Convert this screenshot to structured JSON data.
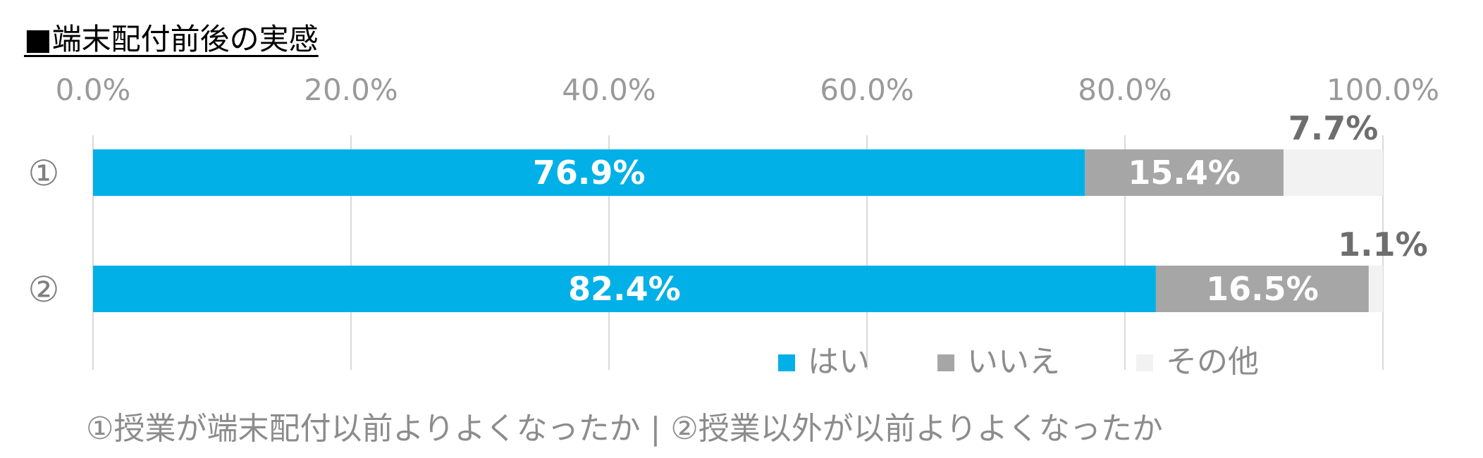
{
  "title": "■端末配付前後の実感",
  "footnote": "①授業が端末配付以前よりよくなったか | ②授業以外が以前よりよくなったか",
  "chart_data": {
    "type": "bar",
    "orientation": "horizontal",
    "stacked": true,
    "title": "■端末配付前後の実感",
    "categories": [
      "①",
      "②"
    ],
    "series": [
      {
        "name": "はい",
        "color": "#00b0e6",
        "values": [
          76.9,
          82.4
        ],
        "labels": [
          "76.9%",
          "82.4%"
        ],
        "label_color": "#ffffff"
      },
      {
        "name": "いいえ",
        "color": "#a6a6a6",
        "values": [
          15.4,
          16.5
        ],
        "labels": [
          "15.4%",
          "16.5%"
        ],
        "label_color": "#ffffff"
      },
      {
        "name": "その他",
        "color": "#f2f2f2",
        "values": [
          7.7,
          1.1
        ],
        "labels": [
          "7.7%",
          "1.1%"
        ],
        "label_color": "#6e6e6e"
      }
    ],
    "xlim": [
      0,
      100
    ],
    "ticks": [
      "0.0%",
      "20.0%",
      "40.0%",
      "60.0%",
      "80.0%",
      "100.0%"
    ],
    "grid": true,
    "legend_position": "bottom-right"
  }
}
